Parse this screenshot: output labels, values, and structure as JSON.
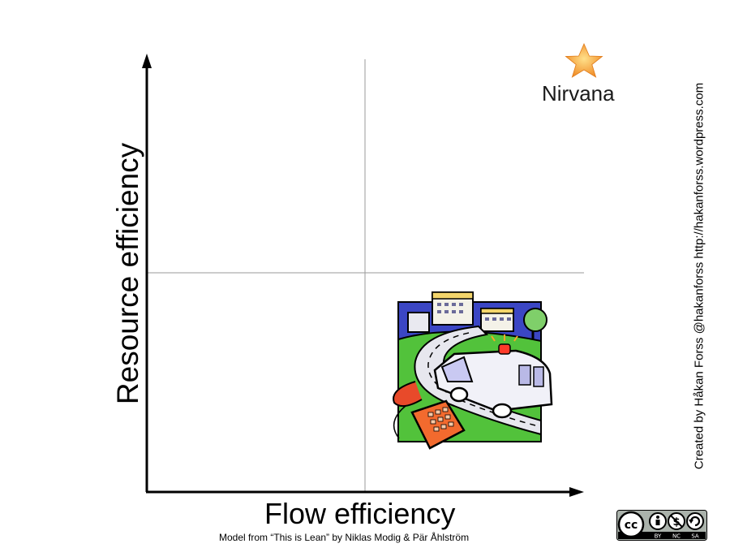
{
  "diagram": {
    "x_axis_label": "Flow efficiency",
    "y_axis_label": "Resource efficiency",
    "nirvana_label": "Nirvana",
    "caption": "Model from “This is Lean” by Niklas Modig &  Pär Åhlström",
    "credit": "Created by Håkan Forss @hakanforss http://hakanforss.wordpress.com"
  },
  "license": {
    "badge_cc": "cc",
    "badge_terms": [
      "BY",
      "NC",
      "SA"
    ]
  },
  "colors": {
    "axis": "#000000",
    "divider": "#999999",
    "star": "#f7a13a"
  }
}
